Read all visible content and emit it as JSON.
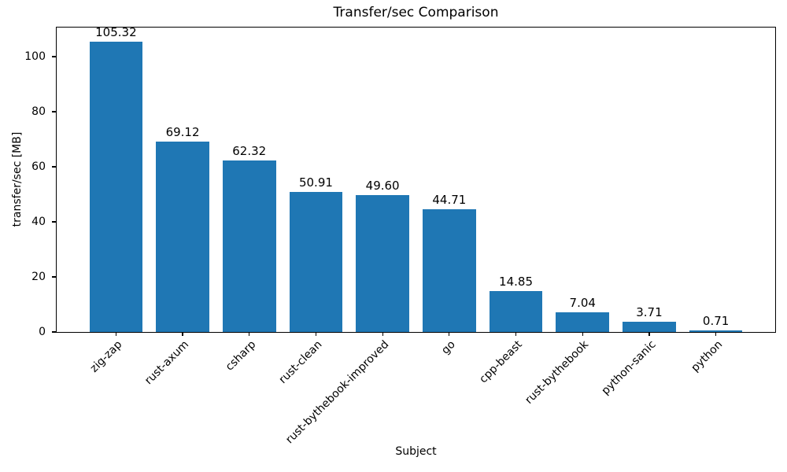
{
  "chart_data": {
    "type": "bar",
    "title": "Transfer/sec Comparison",
    "xlabel": "Subject",
    "ylabel": "transfer/sec [MB]",
    "categories": [
      "zig-zap",
      "rust-axum",
      "csharp",
      "rust-clean",
      "rust-bythebook-improved",
      "go",
      "cpp-beast",
      "rust-bythebook",
      "python-sanic",
      "python"
    ],
    "values": [
      105.32,
      69.12,
      62.32,
      50.91,
      49.6,
      44.71,
      14.85,
      7.04,
      3.71,
      0.71
    ],
    "bar_labels": [
      "105.32",
      "69.12",
      "62.32",
      "50.91",
      "49.60",
      "44.71",
      "14.85",
      "7.04",
      "3.71",
      "0.71"
    ],
    "yticks": [
      0,
      20,
      40,
      60,
      80,
      100
    ],
    "ylim": [
      0,
      110.59
    ],
    "xlim": [
      -0.89,
      9.89
    ],
    "bar_width_fraction": 0.8,
    "x_tick_rotation_deg": 45,
    "grid": false,
    "bar_color": "#1f77b4",
    "text_color": "#000000",
    "spine_color": "#000000",
    "background_color": "#ffffff"
  }
}
